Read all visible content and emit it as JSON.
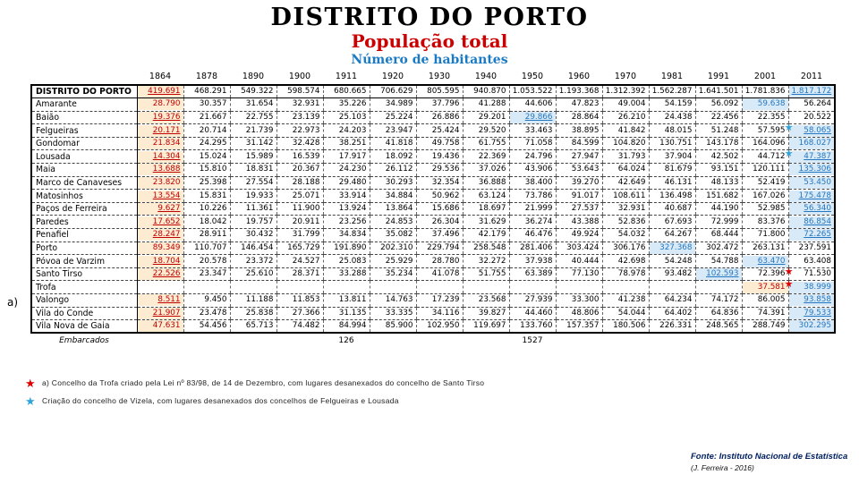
{
  "title": {
    "main": "DISTRITO DO PORTO",
    "subtitle1": "População total",
    "subtitle2": "Número de habitantes"
  },
  "colors": {
    "red_text": "#C00000",
    "blue_text": "#2578C0",
    "peach_bg": "#FDEBD2",
    "blue_bg": "#D8E9F7",
    "star_red": "#DD0000",
    "star_blue": "#2EA3DC",
    "subtitle_red": "#CC0000",
    "subtitle_blue": "#1A7AC4",
    "source_navy": "#002060"
  },
  "table": {
    "years": [
      "1864",
      "1878",
      "1890",
      "1900",
      "1911",
      "1920",
      "1930",
      "1940",
      "1950",
      "1960",
      "1970",
      "1981",
      "1991",
      "2001",
      "2011"
    ],
    "rows": [
      {
        "label": "DISTRITO DO PORTO",
        "district": true,
        "underline": true,
        "min_col": 0,
        "max_col": 14,
        "values": [
          "419.691",
          "468.291",
          "549.322",
          "598.574",
          "680.665",
          "706.629",
          "805.595",
          "940.870",
          "1.053.522",
          "1.193.368",
          "1.312.392",
          "1.562.287",
          "1.641.501",
          "1.781.836",
          "1.817.172"
        ]
      },
      {
        "label": "Amarante",
        "underline": false,
        "min_col": 0,
        "max_col": 13,
        "values": [
          "28.790",
          "30.357",
          "31.654",
          "32.931",
          "35.226",
          "34.989",
          "37.796",
          "41.288",
          "44.606",
          "47.823",
          "49.004",
          "54.159",
          "56.092",
          "59.638",
          "56.264"
        ]
      },
      {
        "label": "Baião",
        "underline": true,
        "min_col": 0,
        "max_col": 8,
        "values": [
          "19.376",
          "21.667",
          "22.755",
          "23.139",
          "25.103",
          "25.224",
          "26.886",
          "29.201",
          "29.866",
          "28.864",
          "26.210",
          "24.438",
          "22.456",
          "22.355",
          "20.522"
        ]
      },
      {
        "label": "Felgueiras",
        "underline": true,
        "min_col": 0,
        "max_col": 14,
        "stars": {
          "13": "blue"
        },
        "values": [
          "20.171",
          "20.714",
          "21.739",
          "22.973",
          "24.203",
          "23.947",
          "25.424",
          "29.520",
          "33.463",
          "38.895",
          "41.842",
          "48.015",
          "51.248",
          "57.595",
          "58.065"
        ]
      },
      {
        "label": "Gondomar",
        "underline": false,
        "min_col": 0,
        "max_col": 14,
        "values": [
          "21.834",
          "24.295",
          "31.142",
          "32.428",
          "38.251",
          "41.818",
          "49.758",
          "61.755",
          "71.058",
          "84.599",
          "104.820",
          "130.751",
          "143.178",
          "164.096",
          "168.027"
        ]
      },
      {
        "label": "Lousada",
        "underline": true,
        "min_col": 0,
        "max_col": 14,
        "stars": {
          "13": "blue"
        },
        "values": [
          "14.304",
          "15.024",
          "15.989",
          "16.539",
          "17.917",
          "18.092",
          "19.436",
          "22.369",
          "24.796",
          "27.947",
          "31.793",
          "37.904",
          "42.502",
          "44.712",
          "47.387"
        ]
      },
      {
        "label": "Maia",
        "underline": true,
        "min_col": 0,
        "max_col": 14,
        "values": [
          "13.688",
          "15.810",
          "18.831",
          "20.367",
          "24.230",
          "26.112",
          "29.536",
          "37.026",
          "43.906",
          "53.643",
          "64.024",
          "81.679",
          "93.151",
          "120.111",
          "135.306"
        ]
      },
      {
        "label": "Marco de Canaveses",
        "underline": false,
        "min_col": 0,
        "max_col": 14,
        "values": [
          "23.820",
          "25.398",
          "27.554",
          "28.188",
          "29.480",
          "30.293",
          "32.354",
          "36.888",
          "38.400",
          "39.270",
          "42.649",
          "46.131",
          "48.133",
          "52.419",
          "53.450"
        ]
      },
      {
        "label": "Matosinhos",
        "underline": true,
        "min_col": 0,
        "max_col": 14,
        "values": [
          "13.554",
          "15.831",
          "19.933",
          "25.071",
          "33.914",
          "34.884",
          "50.962",
          "63.124",
          "73.786",
          "91.017",
          "108.611",
          "136.498",
          "151.682",
          "167.026",
          "175.478"
        ]
      },
      {
        "label": "Paços de Ferreira",
        "underline": true,
        "min_col": 0,
        "max_col": 14,
        "values": [
          "9.627",
          "10.226",
          "11.361",
          "11.900",
          "13.924",
          "13.864",
          "15.686",
          "18.697",
          "21.999",
          "27.537",
          "32.931",
          "40.687",
          "44.190",
          "52.985",
          "56.340"
        ]
      },
      {
        "label": "Paredes",
        "underline": true,
        "min_col": 0,
        "max_col": 14,
        "values": [
          "17.652",
          "18.042",
          "19.757",
          "20.911",
          "23.256",
          "24.853",
          "26.304",
          "31.629",
          "36.274",
          "43.388",
          "52.836",
          "67.693",
          "72.999",
          "83.376",
          "86.854"
        ]
      },
      {
        "label": "Penafiel",
        "underline": true,
        "min_col": 0,
        "max_col": 14,
        "values": [
          "28.247",
          "28.911",
          "30.432",
          "31.799",
          "34.834",
          "35.082",
          "37.496",
          "42.179",
          "46.476",
          "49.924",
          "54.032",
          "64.267",
          "68.444",
          "71.800",
          "72.265"
        ]
      },
      {
        "label": "Porto",
        "underline": false,
        "min_col": 0,
        "max_col": 11,
        "values": [
          "89.349",
          "110.707",
          "146.454",
          "165.729",
          "191.890",
          "202.310",
          "229.794",
          "258.548",
          "281.406",
          "303.424",
          "306.176",
          "327.368",
          "302.472",
          "263.131",
          "237.591"
        ]
      },
      {
        "label": "Póvoa de Varzim",
        "underline": true,
        "min_col": 0,
        "max_col": 13,
        "values": [
          "18.704",
          "20.578",
          "23.372",
          "24.527",
          "25.083",
          "25.929",
          "28.780",
          "32.272",
          "37.938",
          "40.444",
          "42.698",
          "54.248",
          "54.788",
          "63.470",
          "63.408"
        ]
      },
      {
        "label": "Santo Tirso",
        "underline": true,
        "min_col": 0,
        "max_col": 12,
        "stars": {
          "13": "red"
        },
        "values": [
          "22.526",
          "23.347",
          "25.610",
          "28.371",
          "33.288",
          "35.234",
          "41.078",
          "51.755",
          "63.389",
          "77.130",
          "78.978",
          "93.482",
          "102.593",
          "72.396",
          "71.530"
        ]
      },
      {
        "label": "Trofa",
        "underline": false,
        "min_col": 13,
        "max_col": 14,
        "stars": {
          "13": "red"
        },
        "values": [
          "",
          "",
          "",
          "",
          "",
          "",
          "",
          "",
          "",
          "",
          "",
          "",
          "",
          "37.581",
          "38.999"
        ]
      },
      {
        "label": "Valongo",
        "underline": true,
        "min_col": 0,
        "max_col": 14,
        "values": [
          "8.511",
          "9.450",
          "11.188",
          "11.853",
          "13.811",
          "14.763",
          "17.239",
          "23.568",
          "27.939",
          "33.300",
          "41.238",
          "64.234",
          "74.172",
          "86.005",
          "93.858"
        ]
      },
      {
        "label": "Vila do Conde",
        "underline": true,
        "min_col": 0,
        "max_col": 14,
        "values": [
          "21.907",
          "23.478",
          "25.838",
          "27.366",
          "31.135",
          "33.335",
          "34.116",
          "39.827",
          "44.460",
          "48.806",
          "54.044",
          "64.402",
          "64.836",
          "74.391",
          "79.533"
        ]
      },
      {
        "label": "Vila Nova de Gaia",
        "underline": false,
        "min_col": 0,
        "max_col": 14,
        "values": [
          "47.631",
          "54.456",
          "65.713",
          "74.482",
          "84.994",
          "85.900",
          "102.950",
          "119.697",
          "133.760",
          "157.357",
          "180.506",
          "226.331",
          "248.565",
          "288.749",
          "302.295"
        ]
      }
    ],
    "footer": {
      "label": "Embarcados",
      "values": {
        "1911": "126",
        "1950": "1527"
      }
    }
  },
  "side_note": "a)",
  "footnotes": [
    {
      "star": "red",
      "text": "a) Concelho da Trofa criado pela Lei nº 83/98, de 14 de Dezembro, com lugares desanexados do concelho de Santo Tirso"
    },
    {
      "star": "blue",
      "text": "Criação do concelho de Vizela, com lugares desanexados dos concelhos de Felgueiras e Lousada"
    }
  ],
  "source": {
    "line1": "Fonte: Instituto Nacional de Estatística",
    "line2": "(J. Ferreira - 2016)"
  }
}
